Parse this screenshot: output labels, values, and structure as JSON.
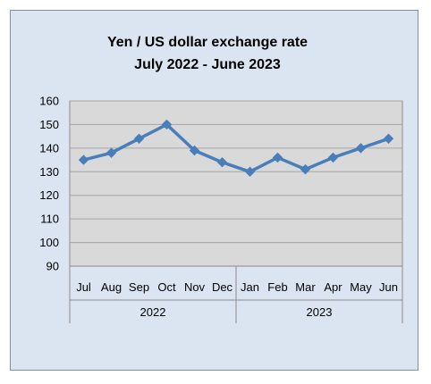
{
  "chart_data": {
    "type": "line",
    "title": [
      "Yen / US dollar  exchange rate",
      "July 2022 - June 2023"
    ],
    "categories": [
      "Jul",
      "Aug",
      "Sep",
      "Oct",
      "Nov",
      "Dec",
      "Jan",
      "Feb",
      "Mar",
      "Apr",
      "May",
      "Jun"
    ],
    "groups": [
      {
        "label": "2022",
        "count": 6
      },
      {
        "label": "2023",
        "count": 6
      }
    ],
    "series": [
      {
        "values": [
          135,
          138,
          144,
          150,
          139,
          134,
          130,
          136,
          131,
          136,
          140,
          144
        ]
      }
    ],
    "ylim": [
      90,
      160
    ],
    "yticks": [
      "90",
      "100",
      "110",
      "120",
      "130",
      "140",
      "150",
      "160"
    ],
    "grid": true,
    "colors": {
      "series": "#4a7ebb",
      "plot_area": "#d9d9d9",
      "chart_area": "#dbe5f1",
      "gridline": "#a6a6a6"
    }
  }
}
